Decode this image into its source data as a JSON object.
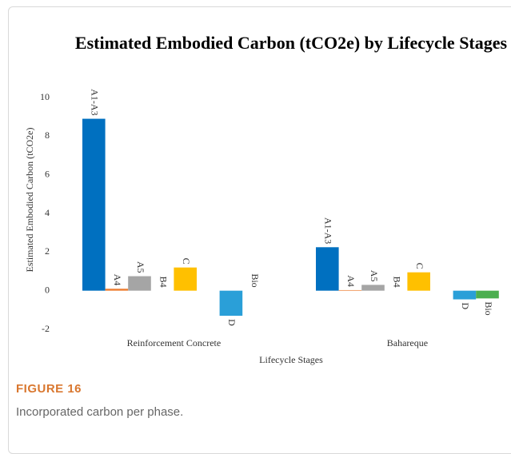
{
  "chart_data": {
    "type": "bar",
    "title": "Estimated Embodied Carbon (tCO2e) by Lifecycle Stages",
    "xlabel": "Lifecycle Stages",
    "ylabel": "Estimated Embodied Carbon (tCO2e)",
    "categories": [
      "Reinforcement Concrete",
      "Bahareque"
    ],
    "series": [
      {
        "name": "A1-A3",
        "color": "#0070c0",
        "values": [
          8.9,
          2.25
        ]
      },
      {
        "name": "A4",
        "color": "#ed7d31",
        "values": [
          0.1,
          0.03
        ]
      },
      {
        "name": "A5",
        "color": "#a5a5a5",
        "values": [
          0.75,
          0.3
        ]
      },
      {
        "name": "B4",
        "color": "#ffc000",
        "values": [
          0,
          0
        ]
      },
      {
        "name": "C",
        "color": "#ffc000",
        "values": [
          1.2,
          0.95
        ]
      },
      {
        "name": "D",
        "color": "#2a9fd8",
        "values": [
          -1.3,
          -0.45
        ]
      },
      {
        "name": "Bio",
        "color": "#4caf50",
        "values": [
          0,
          -0.4
        ]
      }
    ],
    "ylim": [
      -2,
      10
    ],
    "yticks": [
      -2,
      0,
      2,
      4,
      6,
      8,
      10
    ],
    "grid": false
  },
  "caption": {
    "label": "FIGURE 16",
    "text": "Incorporated carbon per phase."
  }
}
